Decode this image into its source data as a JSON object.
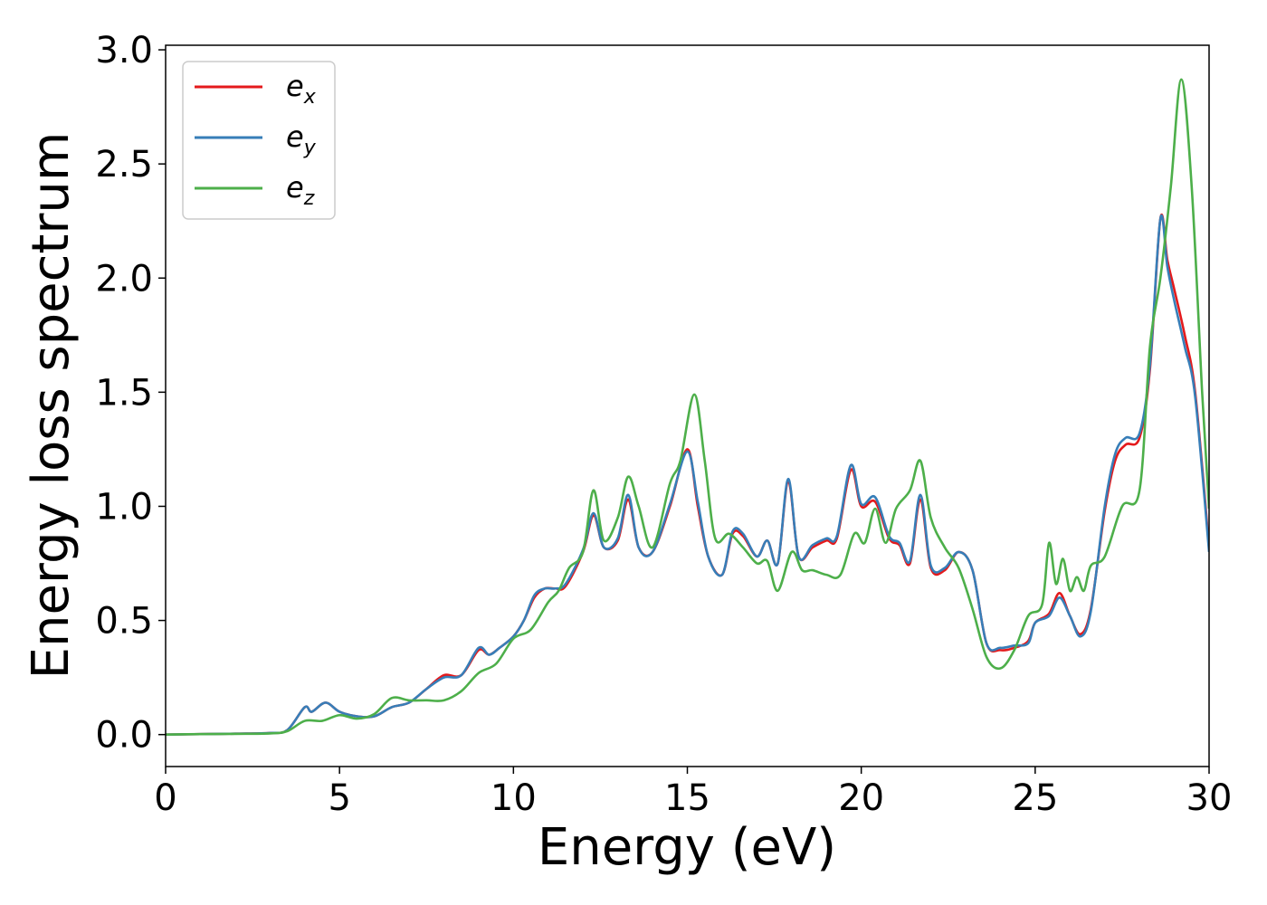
{
  "chart_data": {
    "type": "line",
    "xlabel": "Energy (eV)",
    "ylabel": "Energy loss spectrum",
    "xlim": [
      0,
      30
    ],
    "ylim": [
      -0.14,
      3.02
    ],
    "xticks": [
      "0",
      "5",
      "10",
      "15",
      "20",
      "25",
      "30"
    ],
    "yticks": [
      "0.0",
      "0.5",
      "1.0",
      "1.5",
      "2.0",
      "2.5",
      "3.0"
    ],
    "grid": false,
    "legend_position": "top-left",
    "series": [
      {
        "name": "e_x",
        "legend": {
          "base": "e",
          "sub": "x"
        },
        "color": "#e41a1c",
        "x": [
          0,
          1,
          2,
          3,
          3.5,
          4.0,
          4.2,
          4.6,
          5.0,
          5.5,
          6.0,
          6.5,
          7.0,
          7.5,
          8.0,
          8.5,
          9.0,
          9.3,
          9.6,
          10.0,
          10.3,
          10.6,
          10.9,
          11.2,
          11.5,
          12.0,
          12.3,
          12.6,
          13.0,
          13.3,
          13.6,
          14.0,
          14.5,
          15.0,
          15.3,
          15.6,
          16.0,
          16.3,
          16.6,
          17.0,
          17.3,
          17.6,
          17.9,
          18.2,
          18.6,
          19.0,
          19.3,
          19.7,
          20.0,
          20.4,
          20.8,
          21.1,
          21.4,
          21.7,
          22.0,
          22.4,
          22.8,
          23.2,
          23.6,
          24.0,
          24.4,
          24.8,
          25.0,
          25.4,
          25.7,
          26.0,
          26.3,
          26.6,
          27.0,
          27.3,
          27.6,
          28.0,
          28.3,
          28.6,
          28.8,
          29.0,
          29.3,
          29.6,
          30.0
        ],
        "y": [
          0,
          0.002,
          0.004,
          0.007,
          0.02,
          0.12,
          0.1,
          0.14,
          0.1,
          0.08,
          0.08,
          0.12,
          0.14,
          0.2,
          0.26,
          0.26,
          0.37,
          0.35,
          0.38,
          0.43,
          0.5,
          0.6,
          0.64,
          0.64,
          0.65,
          0.8,
          0.96,
          0.82,
          0.85,
          1.03,
          0.82,
          0.8,
          1.0,
          1.25,
          1.0,
          0.78,
          0.7,
          0.88,
          0.87,
          0.78,
          0.85,
          0.75,
          1.11,
          0.78,
          0.82,
          0.85,
          0.86,
          1.16,
          1.0,
          1.02,
          0.86,
          0.83,
          0.75,
          1.03,
          0.73,
          0.72,
          0.8,
          0.72,
          0.4,
          0.37,
          0.38,
          0.41,
          0.49,
          0.53,
          0.62,
          0.52,
          0.44,
          0.55,
          0.98,
          1.2,
          1.27,
          1.3,
          1.6,
          2.26,
          2.08,
          1.95,
          1.75,
          1.5,
          0.82
        ]
      },
      {
        "name": "e_y",
        "legend": {
          "base": "e",
          "sub": "y"
        },
        "color": "#377eb8",
        "x": [
          0,
          1,
          2,
          3,
          3.5,
          4.0,
          4.2,
          4.6,
          5.0,
          5.5,
          6.0,
          6.5,
          7.0,
          7.5,
          8.0,
          8.5,
          9.0,
          9.3,
          9.6,
          10.0,
          10.3,
          10.6,
          10.9,
          11.2,
          11.5,
          12.0,
          12.3,
          12.6,
          13.0,
          13.3,
          13.6,
          14.0,
          14.5,
          15.0,
          15.3,
          15.6,
          16.0,
          16.3,
          16.6,
          17.0,
          17.3,
          17.6,
          17.9,
          18.2,
          18.6,
          19.0,
          19.3,
          19.7,
          20.0,
          20.4,
          20.8,
          21.1,
          21.4,
          21.7,
          22.0,
          22.4,
          22.8,
          23.2,
          23.6,
          24.0,
          24.4,
          24.8,
          25.0,
          25.4,
          25.7,
          26.0,
          26.3,
          26.6,
          27.0,
          27.3,
          27.6,
          28.0,
          28.3,
          28.6,
          28.8,
          29.0,
          29.3,
          29.6,
          30.0
        ],
        "y": [
          0,
          0.002,
          0.004,
          0.007,
          0.02,
          0.12,
          0.1,
          0.14,
          0.1,
          0.08,
          0.08,
          0.12,
          0.14,
          0.2,
          0.25,
          0.26,
          0.38,
          0.35,
          0.38,
          0.43,
          0.5,
          0.61,
          0.64,
          0.64,
          0.66,
          0.81,
          0.97,
          0.82,
          0.86,
          1.05,
          0.82,
          0.8,
          1.01,
          1.24,
          1.02,
          0.78,
          0.7,
          0.89,
          0.88,
          0.78,
          0.85,
          0.75,
          1.12,
          0.78,
          0.83,
          0.86,
          0.87,
          1.18,
          1.01,
          1.04,
          0.87,
          0.84,
          0.76,
          1.05,
          0.74,
          0.73,
          0.8,
          0.72,
          0.4,
          0.38,
          0.39,
          0.4,
          0.49,
          0.52,
          0.6,
          0.52,
          0.43,
          0.54,
          1.0,
          1.23,
          1.3,
          1.32,
          1.62,
          2.26,
          2.05,
          1.9,
          1.7,
          1.48,
          0.8
        ]
      },
      {
        "name": "e_z",
        "legend": {
          "base": "e",
          "sub": "z"
        },
        "color": "#4daf4a",
        "x": [
          0,
          1,
          2,
          3,
          3.5,
          4.0,
          4.5,
          5.0,
          5.5,
          6.0,
          6.5,
          7.0,
          7.5,
          8.0,
          8.5,
          9.0,
          9.5,
          10.0,
          10.5,
          11.0,
          11.3,
          11.6,
          12.0,
          12.3,
          12.6,
          13.0,
          13.3,
          13.6,
          14.0,
          14.5,
          14.8,
          15.2,
          15.5,
          15.8,
          16.2,
          16.6,
          17.0,
          17.3,
          17.6,
          18.0,
          18.3,
          18.6,
          19.0,
          19.4,
          19.8,
          20.1,
          20.4,
          20.7,
          21.0,
          21.4,
          21.7,
          22.0,
          22.4,
          22.8,
          23.2,
          23.6,
          24.0,
          24.4,
          24.8,
          25.2,
          25.4,
          25.6,
          25.8,
          26.0,
          26.2,
          26.4,
          26.6,
          27.0,
          27.5,
          28.0,
          28.3,
          28.6,
          28.9,
          29.2,
          29.5,
          29.8,
          30.0
        ],
        "y": [
          0,
          0.002,
          0.003,
          0.005,
          0.015,
          0.06,
          0.06,
          0.085,
          0.07,
          0.09,
          0.16,
          0.15,
          0.15,
          0.15,
          0.19,
          0.27,
          0.31,
          0.42,
          0.46,
          0.58,
          0.63,
          0.73,
          0.8,
          1.07,
          0.85,
          0.95,
          1.13,
          1.0,
          0.82,
          1.1,
          1.2,
          1.49,
          1.2,
          0.86,
          0.88,
          0.82,
          0.75,
          0.76,
          0.63,
          0.8,
          0.72,
          0.72,
          0.7,
          0.7,
          0.88,
          0.84,
          0.99,
          0.84,
          0.99,
          1.07,
          1.2,
          0.95,
          0.82,
          0.73,
          0.55,
          0.34,
          0.29,
          0.37,
          0.52,
          0.57,
          0.84,
          0.66,
          0.77,
          0.63,
          0.69,
          0.63,
          0.74,
          0.78,
          1.0,
          1.07,
          1.7,
          2.0,
          2.4,
          2.87,
          2.4,
          1.5,
          0.99
        ]
      }
    ]
  }
}
